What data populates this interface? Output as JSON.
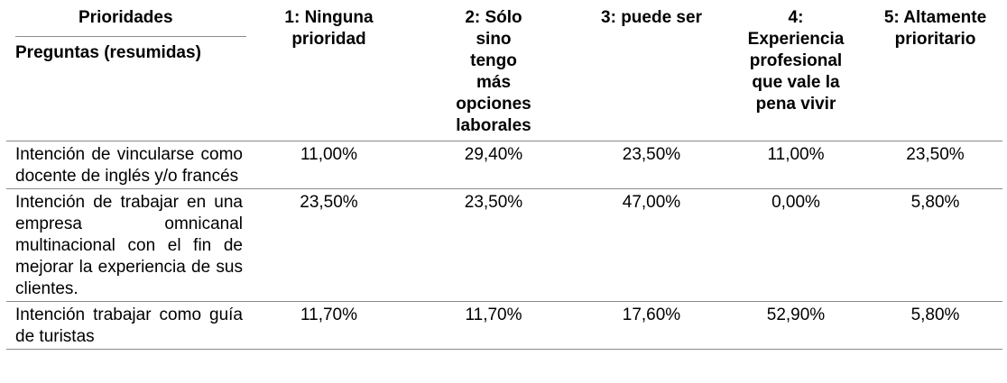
{
  "header": {
    "prioridades": "Prioridades",
    "preguntas": "Preguntas (resumidas)",
    "columns": [
      "1: Ninguna prioridad",
      "2: Sólo sino tengo más opciones laborales",
      "3: puede ser",
      "4: Experiencia profesional que vale la pena vivir",
      "5: Altamente prioritario"
    ]
  },
  "rows": [
    {
      "question": "Intención de vincularse como docente de inglés y/o francés",
      "values": [
        "11,00%",
        "29,40%",
        "23,50%",
        "11,00%",
        "23,50%"
      ]
    },
    {
      "question": "Intención de trabajar en una empresa omnicanal multinacional con el fin de mejorar la experiencia de sus clientes.",
      "values": [
        "23,50%",
        "23,50%",
        "47,00%",
        "0,00%",
        "5,80%"
      ]
    },
    {
      "question": "Intención trabajar como guía de turistas",
      "values": [
        "11,70%",
        "11,70%",
        "17,60%",
        "52,90%",
        "5,80%"
      ]
    }
  ]
}
